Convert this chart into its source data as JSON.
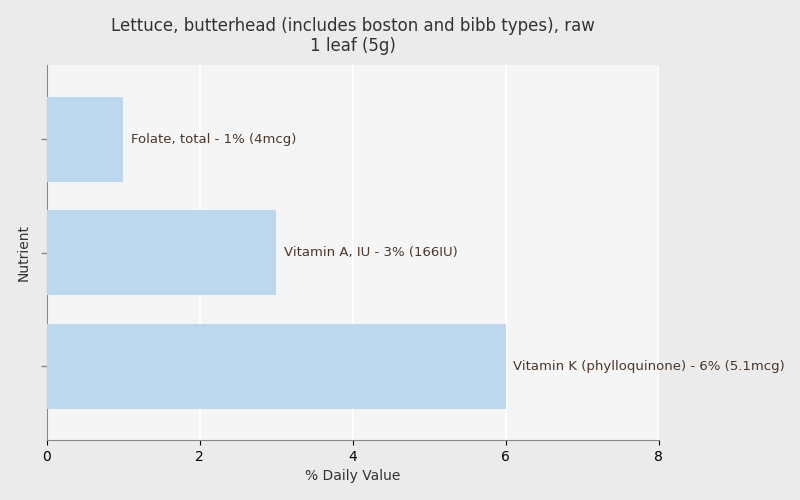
{
  "title_line1": "Lettuce, butterhead (includes boston and bibb types), raw",
  "title_line2": "1 leaf (5g)",
  "nutrients": [
    "Vitamin K (phylloquinone) - 6% (5.1mcg)",
    "Vitamin A, IU - 3% (166IU)",
    "Folate, total - 1% (4mcg)"
  ],
  "values": [
    6,
    3,
    1
  ],
  "bar_color": "#bdd7ee",
  "bar_height": 0.75,
  "xlim": [
    0,
    8
  ],
  "xticks": [
    0,
    2,
    4,
    6,
    8
  ],
  "xlabel": "% Daily Value",
  "ylabel": "Nutrient",
  "background_color": "#ebebeb",
  "plot_background_color": "#f5f5f5",
  "label_color": "#4a3728",
  "title_color": "#333333",
  "grid_color": "#ffffff",
  "label_fontsize": 9.5,
  "title_fontsize": 12,
  "axis_fontsize": 10,
  "tick_fontsize": 10
}
